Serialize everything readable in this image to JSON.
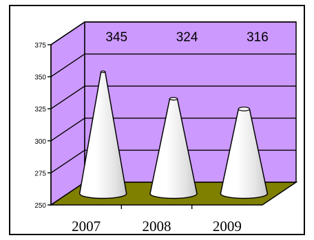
{
  "chart_data": {
    "type": "bar",
    "bar_shape": "cone",
    "view": "3d",
    "categories": [
      "2007",
      "2008",
      "2009"
    ],
    "values": [
      345,
      324,
      316
    ],
    "data_labels": [
      "345",
      "324",
      "316"
    ],
    "ylim": [
      250,
      375
    ],
    "y_ticks": [
      "250",
      "275",
      "300",
      "325",
      "350",
      "375"
    ],
    "title": "",
    "xlabel": "",
    "ylabel": "",
    "grid": true,
    "legend": "none",
    "colors": {
      "back_wall": "#CC99FF",
      "floor": "#808000",
      "cone": "#F2F2F2",
      "frame": "#000000"
    }
  }
}
